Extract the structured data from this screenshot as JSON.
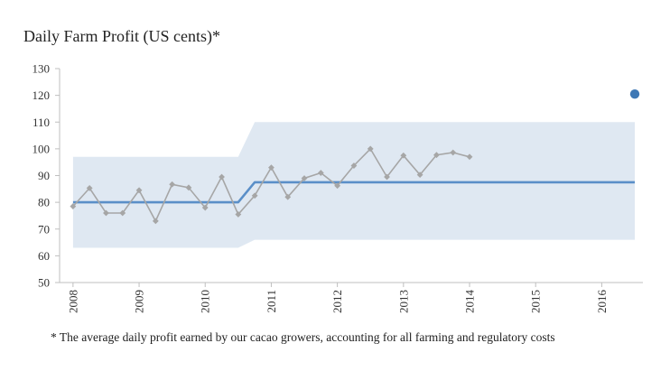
{
  "chart_data": {
    "type": "line",
    "title": "Daily Farm Profit (US cents)*",
    "footnote": "* The average daily profit earned by our cacao growers, accounting for all farming and regulatory costs",
    "xlabel": "",
    "ylabel": "",
    "xlim": [
      2007.92,
      2016.5
    ],
    "ylim": [
      50,
      130
    ],
    "y_ticks": [
      50,
      60,
      70,
      80,
      90,
      100,
      110,
      120,
      130
    ],
    "x_ticks": [
      2008,
      2009,
      2010,
      2011,
      2012,
      2013,
      2014,
      2015,
      2016
    ],
    "grid": false,
    "legend": "none",
    "series": [
      {
        "role": "observed",
        "marker": "diamond",
        "color": "#a6a6a6",
        "x": [
          2008.0,
          2008.25,
          2008.5,
          2008.75,
          2009.0,
          2009.25,
          2009.5,
          2009.75,
          2010.0,
          2010.25,
          2010.5,
          2010.75,
          2011.0,
          2011.25,
          2011.5,
          2011.75,
          2012.0,
          2012.25,
          2012.5,
          2012.75,
          2013.0,
          2013.25,
          2013.5,
          2013.75,
          2014.0
        ],
        "y": [
          78.5,
          85.3,
          76.0,
          76.0,
          84.5,
          73.0,
          86.7,
          85.5,
          78.0,
          89.5,
          75.5,
          82.5,
          93.0,
          82.0,
          89.0,
          91.0,
          86.2,
          93.7,
          100.0,
          89.5,
          97.5,
          90.3,
          97.7,
          98.6,
          97.0
        ]
      },
      {
        "role": "reference",
        "color": "#5a8fc8",
        "x": [
          2008.0,
          2010.5,
          2010.75,
          2016.5
        ],
        "y": [
          80.0,
          80.0,
          87.5,
          87.5
        ]
      },
      {
        "role": "band",
        "color": "#dfe8f2",
        "x": [
          2008.0,
          2010.5,
          2010.75,
          2016.5
        ],
        "upper": [
          97.0,
          97.0,
          110.0,
          110.0
        ],
        "lower": [
          63.0,
          63.0,
          66.0,
          66.0
        ]
      },
      {
        "role": "highlight-point",
        "color": "#3e78b5",
        "x": [
          2016.5
        ],
        "y": [
          120.5
        ]
      }
    ]
  }
}
